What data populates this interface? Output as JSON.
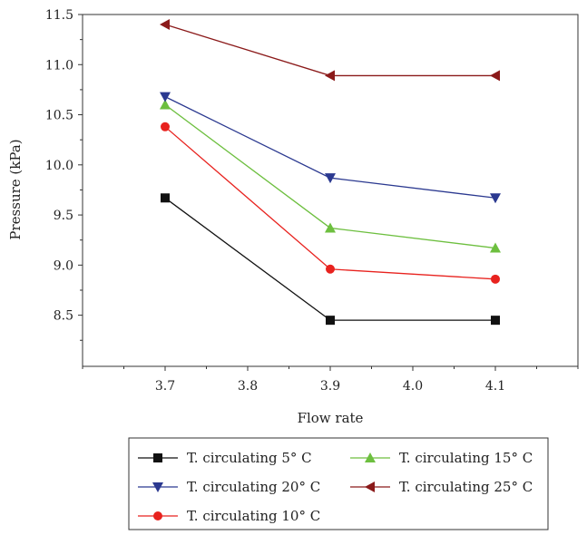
{
  "chart_data": {
    "type": "line",
    "xlabel": "Flow rate",
    "ylabel": "Pressure (kPa)",
    "x": [
      3.7,
      3.9,
      4.1
    ],
    "xlim": [
      3.6,
      4.2
    ],
    "ylim": [
      7.99,
      11.5
    ],
    "xticks": [
      "3.7",
      "3.8",
      "3.9",
      "4.0",
      "4.1"
    ],
    "yticks": [
      "8.5",
      "9.0",
      "9.5",
      "10.0",
      "10.5",
      "11.0",
      "11.5"
    ],
    "grid": false,
    "legend_position": "bottom",
    "series": [
      {
        "name": "T. circulating 5° C",
        "color": "#111111",
        "marker": "square",
        "values": [
          9.67,
          8.45,
          8.45
        ]
      },
      {
        "name": "T. circulating 10° C",
        "color": "#e8221e",
        "marker": "circle",
        "values": [
          10.38,
          8.96,
          8.86
        ]
      },
      {
        "name": "T. circulating 15° C",
        "color": "#6dbf3f",
        "marker": "triangle-up",
        "values": [
          10.6,
          9.37,
          9.17
        ]
      },
      {
        "name": "T. circulating 20° C",
        "color": "#2b3990",
        "marker": "triangle-down",
        "values": [
          10.68,
          9.87,
          9.67
        ]
      },
      {
        "name": "T. circulating 25° C",
        "color": "#8b1a1a",
        "marker": "triangle-left",
        "values": [
          11.4,
          10.89,
          10.89
        ]
      }
    ],
    "legend_order": [
      0,
      2,
      3,
      4,
      1
    ]
  }
}
